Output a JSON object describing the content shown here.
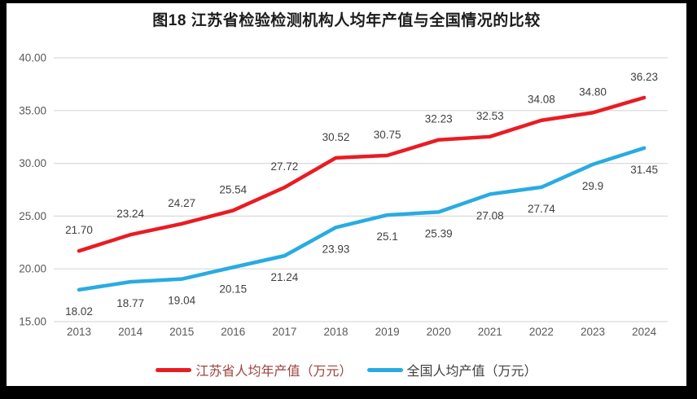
{
  "figure": {
    "title": "图18  江苏省检验检测机构人均年产值与全国情况的比较"
  },
  "chart_data": {
    "type": "line",
    "title": "图18  江苏省检验检测机构人均年产值与全国情况的比较",
    "categories": [
      "2013",
      "2014",
      "2015",
      "2016",
      "2017",
      "2018",
      "2019",
      "2020",
      "2021",
      "2022",
      "2023",
      "2024"
    ],
    "series": [
      {
        "name": "江苏省人均年产值（万元）",
        "color": "#e91c23",
        "label_position": "above",
        "values": [
          21.7,
          23.24,
          24.27,
          25.54,
          27.72,
          30.52,
          30.75,
          32.23,
          32.53,
          34.08,
          34.8,
          36.23
        ],
        "value_labels": [
          "21.70",
          "23.24",
          "24.27",
          "25.54",
          "27.72",
          "30.52",
          "30.75",
          "32.23",
          "32.53",
          "34.08",
          "34.80",
          "36.23"
        ]
      },
      {
        "name": "全国人均产值（万元）",
        "color": "#29abe2",
        "label_position": "below",
        "values": [
          18.02,
          18.77,
          19.04,
          20.15,
          21.24,
          23.93,
          25.1,
          25.39,
          27.08,
          27.74,
          29.9,
          31.45
        ],
        "value_labels": [
          "18.02",
          "18.77",
          "19.04",
          "20.15",
          "21.24",
          "23.93",
          "25.1",
          "25.39",
          "27.08",
          "27.74",
          "29.9",
          "31.45"
        ]
      }
    ],
    "ylim": [
      15,
      40
    ],
    "ytick_step": 5,
    "ytick_labels": [
      "40.00",
      "35.00",
      "30.00",
      "25.00",
      "20.00",
      "15.00"
    ],
    "xlabel": "",
    "ylabel": "",
    "grid": true,
    "legend_position": "bottom",
    "styles": {
      "grid_color": "#d9d9d9",
      "tick_label_color": "#595959",
      "data_label_color": "#404040",
      "frame_color": "#000000",
      "background": "#ffffff"
    }
  },
  "legend": {
    "items": [
      {
        "label": "江苏省人均年产值（万元）",
        "color": "#e91c23",
        "label_color": "#9a4340"
      },
      {
        "label": "全国人均产值（万元）",
        "color": "#29abe2",
        "label_color": "#3f3f3f"
      }
    ]
  }
}
